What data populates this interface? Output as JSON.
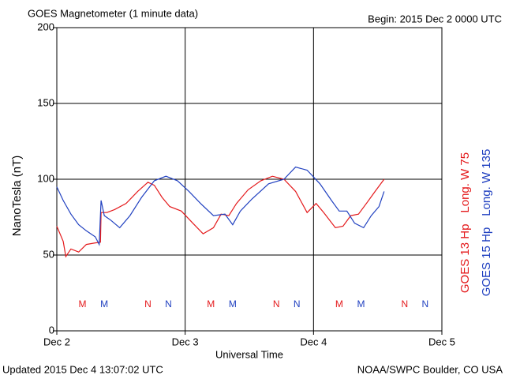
{
  "chart_data": {
    "type": "line",
    "title": "GOES Magnetometer (1 minute data)",
    "subtitle": "Begin:  2015 Dec 2 0000 UTC",
    "xlabel": "Universal Time",
    "ylabel": "NanoTesla (nT)",
    "updated": "Updated 2015 Dec  4 13:07:02 UTC",
    "source": "NOAA/SWPC Boulder, CO USA",
    "xlim": [
      0,
      3
    ],
    "xticks": [
      {
        "value": 0,
        "label": "Dec 2"
      },
      {
        "value": 1,
        "label": "Dec 3"
      },
      {
        "value": 2,
        "label": "Dec 4"
      },
      {
        "value": 3,
        "label": "Dec 5"
      }
    ],
    "ylim": [
      0,
      200
    ],
    "yticks": [
      0,
      50,
      100,
      150,
      200
    ],
    "grid": true,
    "series": [
      {
        "name": "GOES 13 Hp",
        "longitude": "Long. W 75",
        "color": "#e41a1c",
        "x": [
          0,
          0.05,
          0.07,
          0.11,
          0.17,
          0.23,
          0.3,
          0.34,
          0.345,
          0.39,
          0.45,
          0.54,
          0.63,
          0.71,
          0.76,
          0.82,
          0.88,
          0.97,
          1.06,
          1.14,
          1.22,
          1.28,
          1.34,
          1.4,
          1.49,
          1.59,
          1.68,
          1.77,
          1.86,
          1.95,
          2.02,
          2.08,
          2.17,
          2.23,
          2.29,
          2.35,
          2.42,
          2.48,
          2.55
        ],
        "values": [
          69,
          59,
          49,
          54,
          52,
          57,
          58,
          58.5,
          78,
          78,
          80,
          84,
          92,
          98,
          96,
          88,
          82,
          79,
          71,
          64,
          68,
          77,
          76,
          84,
          93,
          99,
          102,
          100,
          92,
          78,
          84,
          78,
          68,
          69,
          76,
          77,
          85,
          92,
          100
        ]
      },
      {
        "name": "GOES 15 Hp",
        "longitude": "Long. W 135",
        "color": "#2040c0",
        "x": [
          0,
          0.05,
          0.11,
          0.17,
          0.23,
          0.3,
          0.33,
          0.345,
          0.37,
          0.42,
          0.49,
          0.57,
          0.66,
          0.76,
          0.85,
          0.94,
          1.03,
          1.12,
          1.22,
          1.31,
          1.37,
          1.43,
          1.52,
          1.65,
          1.77,
          1.86,
          1.95,
          2.05,
          2.14,
          2.2,
          2.26,
          2.32,
          2.39,
          2.45,
          2.51,
          2.55
        ],
        "values": [
          95,
          86,
          77,
          70,
          66,
          62,
          57,
          86,
          76,
          73,
          68,
          76,
          88,
          99,
          102,
          99,
          92,
          84,
          76,
          77,
          70,
          79,
          87,
          97,
          100,
          108,
          106,
          97,
          86,
          79,
          79,
          71,
          68,
          76,
          82,
          92
        ]
      }
    ],
    "markers": [
      {
        "label": "M",
        "x": 0.2,
        "series": 0
      },
      {
        "label": "M",
        "x": 0.37,
        "series": 1
      },
      {
        "label": "N",
        "x": 0.71,
        "series": 0
      },
      {
        "label": "N",
        "x": 0.87,
        "series": 1
      },
      {
        "label": "M",
        "x": 1.2,
        "series": 0
      },
      {
        "label": "M",
        "x": 1.37,
        "series": 1
      },
      {
        "label": "N",
        "x": 1.71,
        "series": 0
      },
      {
        "label": "N",
        "x": 1.87,
        "series": 1
      },
      {
        "label": "M",
        "x": 2.2,
        "series": 0
      },
      {
        "label": "M",
        "x": 2.37,
        "series": 1
      },
      {
        "label": "N",
        "x": 2.71,
        "series": 0
      },
      {
        "label": "N",
        "x": 2.87,
        "series": 1
      }
    ]
  }
}
